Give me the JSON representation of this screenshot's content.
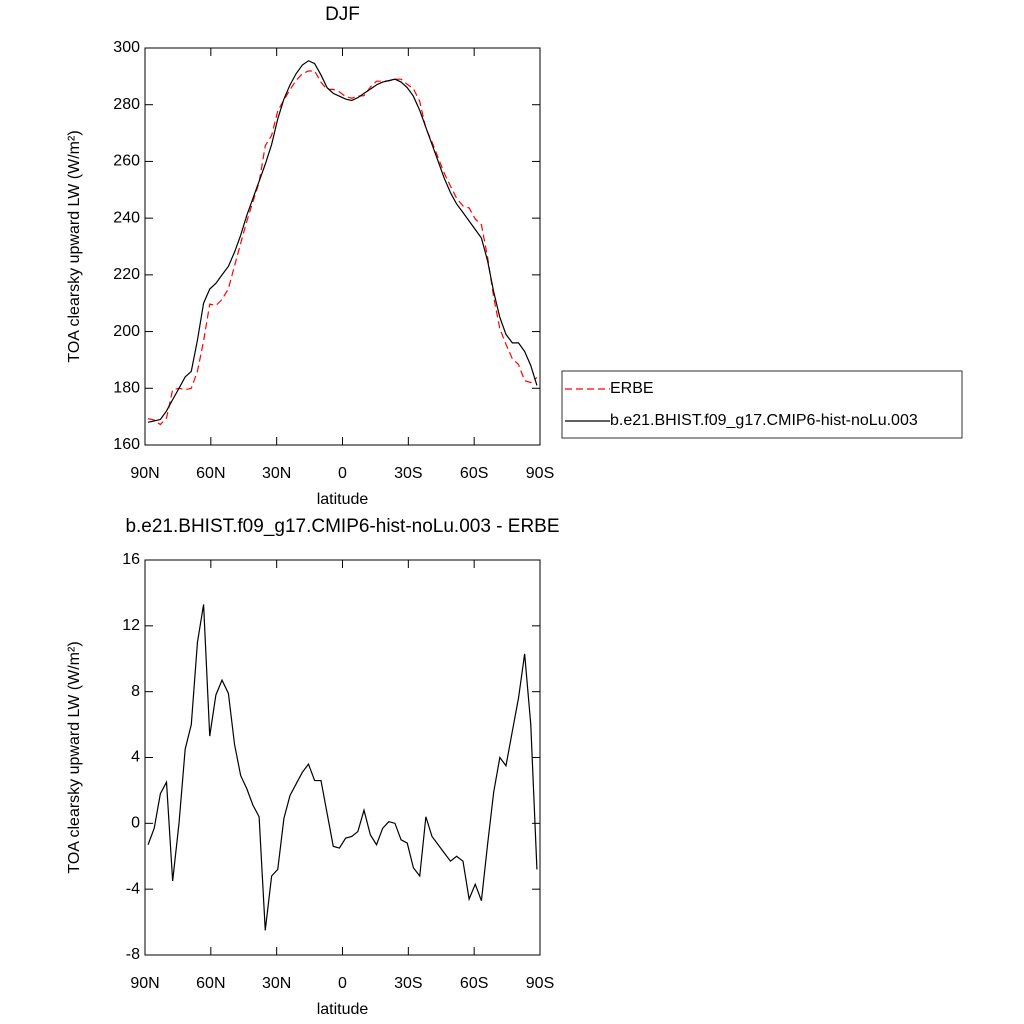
{
  "chart_data": [
    {
      "type": "line",
      "title": "DJF",
      "xlabel": "latitude",
      "ylabel": "TOA clearsky upward LW (W/m²)",
      "x": [
        88.6,
        85.8,
        83.0,
        80.2,
        77.4,
        74.5,
        71.7,
        68.9,
        66.1,
        63.3,
        60.5,
        57.7,
        54.9,
        52.0,
        49.2,
        46.4,
        43.6,
        40.8,
        38.0,
        35.2,
        32.3,
        29.5,
        26.7,
        23.9,
        21.1,
        18.3,
        15.5,
        12.7,
        9.8,
        7.0,
        4.2,
        1.4,
        -1.4,
        -4.2,
        -7.0,
        -9.8,
        -12.7,
        -15.5,
        -18.3,
        -21.1,
        -23.9,
        -26.7,
        -29.5,
        -32.3,
        -35.2,
        -38.0,
        -40.8,
        -43.6,
        -46.4,
        -49.2,
        -52.0,
        -54.9,
        -57.7,
        -60.5,
        -63.3,
        -66.1,
        -68.9,
        -71.7,
        -74.5,
        -77.4,
        -80.2,
        -83.0,
        -85.8,
        -88.6
      ],
      "series": [
        {
          "name": "ERBE",
          "color": "#ff0000",
          "style": "dashed",
          "values": [
            169.3,
            168.8,
            167.2,
            169.5,
            179.5,
            180,
            179.5,
            180,
            186,
            196.7,
            209.7,
            209.2,
            211.3,
            215.1,
            223.2,
            231.1,
            238.9,
            245.9,
            252.6,
            265.5,
            269.2,
            277.8,
            281.7,
            285.3,
            288.6,
            290.9,
            291.9,
            291.9,
            287.9,
            285.4,
            285.4,
            284.5,
            282.9,
            282.3,
            283,
            283.2,
            286.2,
            288.3,
            288.3,
            288.4,
            289,
            289,
            287.2,
            285.7,
            281.2,
            271.6,
            266.8,
            261.3,
            255.8,
            251.3,
            247,
            244.3,
            243.6,
            239.7,
            237.7,
            226.3,
            212.1,
            201,
            195.5,
            190.4,
            188.4,
            182.7,
            182,
            183.8
          ]
        },
        {
          "name": "b.e21.BHIST.f09_g17.CMIP6-hist-noLu.003",
          "color": "#000000",
          "style": "solid",
          "values": [
            168,
            168.5,
            169,
            172,
            176,
            180,
            184,
            186,
            197,
            210,
            215,
            217,
            220,
            223,
            228,
            234,
            241,
            247,
            253,
            259,
            266,
            275,
            282,
            287,
            291,
            294,
            295.5,
            294.5,
            290.5,
            286,
            284,
            283,
            282,
            281.5,
            282.5,
            284,
            285.5,
            287,
            288,
            288.5,
            289,
            288,
            286,
            283,
            278,
            272,
            266,
            260,
            254,
            249,
            245,
            242,
            239,
            236,
            233,
            225,
            214,
            205,
            199,
            196,
            196,
            193,
            188,
            181
          ]
        }
      ],
      "xlim": [
        90,
        -90
      ],
      "xticks": [
        {
          "value": 90,
          "label": "90N"
        },
        {
          "value": 60,
          "label": "60N"
        },
        {
          "value": 30,
          "label": "30N"
        },
        0,
        {
          "value": -30,
          "label": "30S"
        },
        {
          "value": -60,
          "label": "60S"
        },
        {
          "value": -90,
          "label": "90S"
        }
      ],
      "ylim": [
        160,
        300
      ],
      "yticks": [
        160,
        180,
        200,
        220,
        240,
        260,
        280,
        300
      ],
      "legend": "right"
    },
    {
      "type": "line",
      "title": "b.e21.BHIST.f09_g17.CMIP6-hist-noLu.003 - ERBE",
      "xlabel": "latitude",
      "ylabel": "TOA clearsky upward LW (W/m²)",
      "x": [
        88.6,
        85.8,
        83.0,
        80.2,
        77.4,
        74.5,
        71.7,
        68.9,
        66.1,
        63.3,
        60.5,
        57.7,
        54.9,
        52.0,
        49.2,
        46.4,
        43.6,
        40.8,
        38.0,
        35.2,
        32.3,
        29.5,
        26.7,
        23.9,
        21.1,
        18.3,
        15.5,
        12.7,
        9.8,
        7.0,
        4.2,
        1.4,
        -1.4,
        -4.2,
        -7.0,
        -9.8,
        -12.7,
        -15.5,
        -18.3,
        -21.1,
        -23.9,
        -26.7,
        -29.5,
        -32.3,
        -35.2,
        -38.0,
        -40.8,
        -43.6,
        -46.4,
        -49.2,
        -52.0,
        -54.9,
        -57.7,
        -60.5,
        -63.3,
        -66.1,
        -68.9,
        -71.7,
        -74.5,
        -77.4,
        -80.2,
        -83.0,
        -85.8,
        -88.6
      ],
      "series": [
        {
          "color": "#000000",
          "style": "solid",
          "values": [
            -1.3,
            -0.3,
            1.8,
            2.5,
            -3.5,
            0,
            4.5,
            6,
            11,
            13.3,
            5.3,
            7.8,
            8.7,
            7.9,
            4.8,
            2.9,
            2.1,
            1.1,
            0.4,
            -6.5,
            -3.2,
            -2.8,
            0.3,
            1.7,
            2.4,
            3.1,
            3.6,
            2.6,
            2.6,
            0.6,
            -1.4,
            -1.5,
            -0.9,
            -0.8,
            -0.5,
            0.8,
            -0.7,
            -1.3,
            -0.3,
            0.1,
            0,
            -1,
            -1.2,
            -2.7,
            -3.2,
            0.4,
            -0.8,
            -1.3,
            -1.8,
            -2.3,
            -2.0,
            -2.3,
            -4.6,
            -3.7,
            -4.7,
            -1.3,
            1.9,
            4.0,
            3.5,
            5.6,
            7.6,
            10.3,
            6,
            -2.8
          ]
        }
      ],
      "xlim": [
        90,
        -90
      ],
      "xticks": [
        {
          "value": 90,
          "label": "90N"
        },
        {
          "value": 60,
          "label": "60N"
        },
        {
          "value": 30,
          "label": "30N"
        },
        0,
        {
          "value": -30,
          "label": "30S"
        },
        {
          "value": -60,
          "label": "60S"
        },
        {
          "value": -90,
          "label": "90S"
        }
      ],
      "ylim": [
        -8,
        16
      ],
      "yticks": [
        -8,
        -4,
        0,
        4,
        8,
        12,
        16
      ]
    }
  ]
}
